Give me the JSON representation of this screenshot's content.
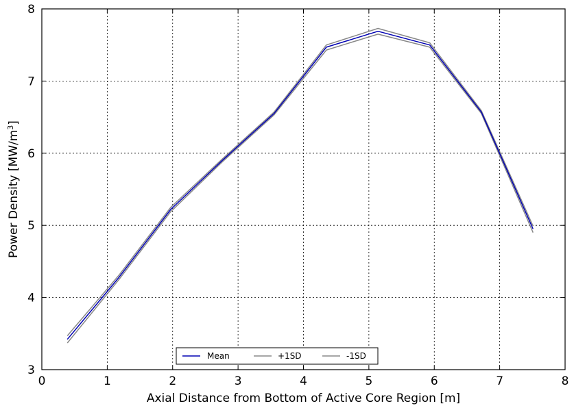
{
  "chart_data": {
    "type": "line",
    "title": "",
    "xlabel": "Axial Distance from Bottom of Active Core Region [m]",
    "ylabel_main": "Power Density [MW/m",
    "ylabel_sup": "3",
    "ylabel_end": "]",
    "xlim": [
      0,
      8
    ],
    "ylim": [
      3,
      8
    ],
    "x_ticks": [
      0,
      1,
      2,
      3,
      4,
      5,
      6,
      7,
      8
    ],
    "y_ticks": [
      3,
      4,
      5,
      6,
      7,
      8
    ],
    "x_tick_labels": [
      "0",
      "1",
      "2",
      "3",
      "4",
      "5",
      "6",
      "7",
      "8"
    ],
    "y_tick_labels": [
      "3",
      "4",
      "5",
      "6",
      "7",
      "8"
    ],
    "grid": true,
    "grid_style": "dotted",
    "legend_position": "bottom-center",
    "series": [
      {
        "name": "Mean",
        "color": "#0000b3",
        "x": [
          0.39,
          1.18,
          1.97,
          2.76,
          3.55,
          4.35,
          5.14,
          5.93,
          6.72,
          7.51
        ],
        "y": [
          3.42,
          4.28,
          5.22,
          5.9,
          6.55,
          7.47,
          7.69,
          7.5,
          6.57,
          4.95
        ]
      },
      {
        "name": "+1SD",
        "color": "#888888",
        "x": [
          0.39,
          1.18,
          1.97,
          2.76,
          3.55,
          4.35,
          5.14,
          5.93,
          6.72,
          7.51
        ],
        "y": [
          3.47,
          4.31,
          5.25,
          5.92,
          6.57,
          7.5,
          7.73,
          7.53,
          6.59,
          4.99
        ]
      },
      {
        "name": "-1SD",
        "color": "#888888",
        "x": [
          0.39,
          1.18,
          1.97,
          2.76,
          3.55,
          4.35,
          5.14,
          5.93,
          6.72,
          7.51
        ],
        "y": [
          3.37,
          4.25,
          5.19,
          5.88,
          6.53,
          7.43,
          7.65,
          7.47,
          6.55,
          4.9
        ]
      }
    ]
  }
}
